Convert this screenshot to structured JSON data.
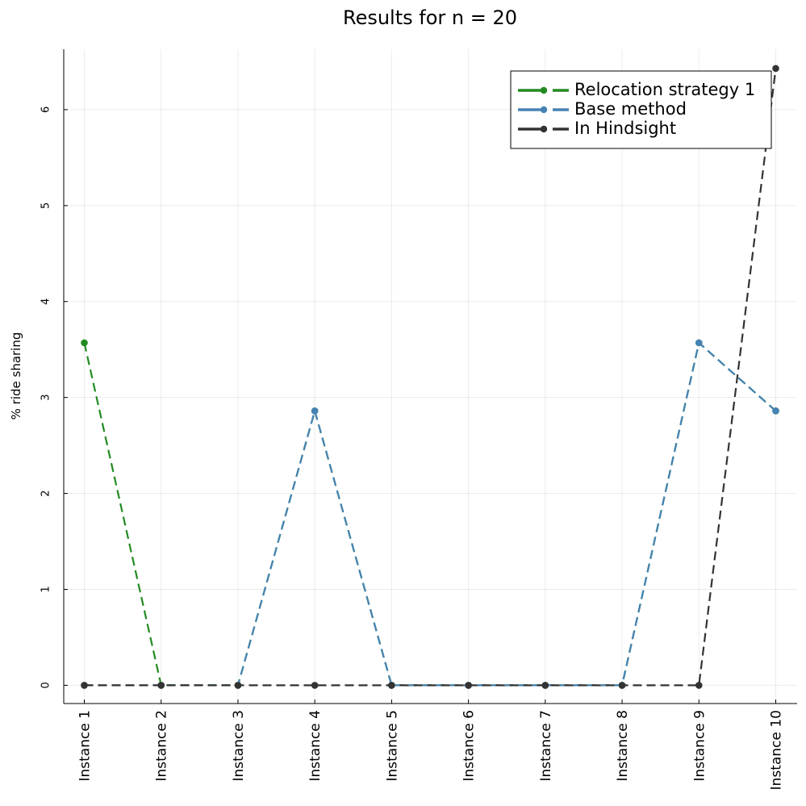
{
  "chart_data": {
    "type": "line",
    "title": "Results for n = 20",
    "xlabel": "",
    "ylabel": "% ride sharing",
    "categories": [
      "Instance 1",
      "Instance 2",
      "Instance 3",
      "Instance 4",
      "Instance 5",
      "Instance 6",
      "Instance 7",
      "Instance 8",
      "Instance 9",
      "Instance 10"
    ],
    "ylim": [
      -0.19,
      6.63
    ],
    "yticks": [
      "0",
      "1",
      "2",
      "3",
      "4",
      "5",
      "6"
    ],
    "grid": true,
    "legend_position": "top-right",
    "line_style": "dashed",
    "series": [
      {
        "name": "Relocation strategy 1",
        "color": "#228b22",
        "values": [
          3.57,
          0,
          0,
          2.86,
          0,
          0,
          0,
          0,
          3.57,
          2.86
        ]
      },
      {
        "name": "Base method",
        "color": "#4682b4",
        "values": [
          0,
          0,
          0,
          2.86,
          0,
          0,
          0,
          0,
          3.57,
          2.86
        ]
      },
      {
        "name": "In Hindsight",
        "color": "#333333",
        "values": [
          0,
          0,
          0,
          0,
          0,
          0,
          0,
          0,
          0,
          6.43
        ]
      }
    ]
  }
}
